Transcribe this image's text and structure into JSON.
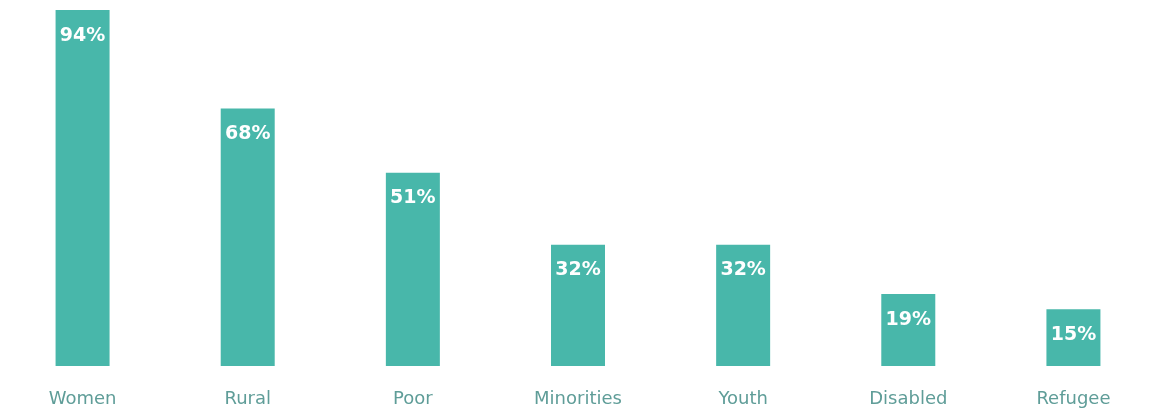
{
  "chart_data": {
    "type": "bar",
    "categories": [
      "Women",
      "Rural",
      "Poor",
      "Minorities",
      "Youth",
      "Disabled",
      "Refugee"
    ],
    "values": [
      94,
      68,
      51,
      32,
      32,
      19,
      15
    ],
    "value_labels": [
      "94%",
      "68%",
      "51%",
      "32%",
      "32%",
      "19%",
      "15%"
    ],
    "color": "#48b7aa"
  }
}
